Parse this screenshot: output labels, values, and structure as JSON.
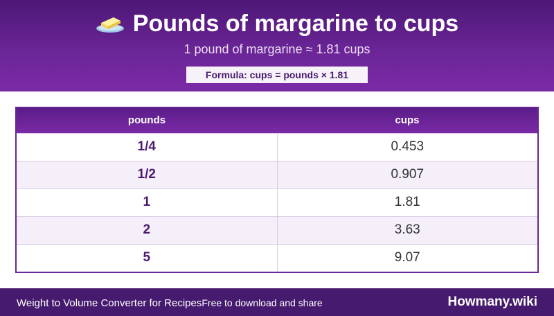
{
  "header": {
    "title": "Pounds of margarine to cups",
    "icon": "butter-icon",
    "subtitle": "1 pound of margarine ≈ 1.81 cups",
    "formula": "Formula: cups = pounds × 1.81"
  },
  "table": {
    "headers": [
      "pounds",
      "cups"
    ],
    "rows": [
      {
        "pounds": "1/4",
        "cups": "0.453"
      },
      {
        "pounds": "1/2",
        "cups": "0.907"
      },
      {
        "pounds": "1",
        "cups": "1.81"
      },
      {
        "pounds": "2",
        "cups": "3.63"
      },
      {
        "pounds": "5",
        "cups": "9.07"
      }
    ]
  },
  "footer": {
    "left_text": "Weight to Volume Converter for Recipes",
    "tagline": "Free to download and share",
    "brand": "Howmany.wiki"
  },
  "colors": {
    "header_purple": "#6a2596",
    "footer_purple": "#461a6e",
    "accent_text": "#4a1a72"
  }
}
